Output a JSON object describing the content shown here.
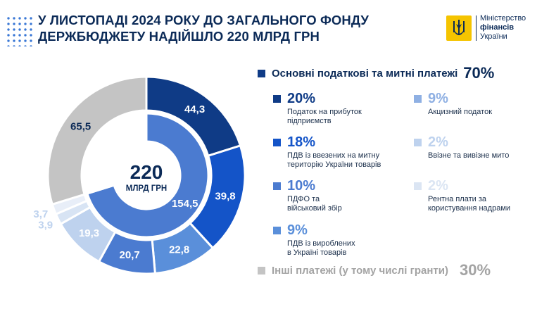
{
  "header": {
    "title": "У листопаді 2024 року до загального фонду держбюджету надійшло 220 млрд грн",
    "logo_line1": "Міністерство",
    "logo_line2": "фінансів",
    "logo_line3": "України"
  },
  "chart_data": {
    "type": "pie",
    "variant": "nested-donut",
    "center_value": "220",
    "center_unit": "млрд грн",
    "inner_ring": [
      {
        "value": 154.5,
        "label": "154,5",
        "color": "#4b7bd0"
      },
      {
        "value": 65.5,
        "label": "",
        "color": "#ffffff"
      }
    ],
    "outer_ring": [
      {
        "value": 44.3,
        "label": "44,3",
        "color": "#0f3b86"
      },
      {
        "value": 39.8,
        "label": "39,8",
        "color": "#1454c8"
      },
      {
        "value": 22.8,
        "label": "22,8",
        "color": "#5a8fda"
      },
      {
        "value": 20.7,
        "label": "20,7",
        "color": "#4b7bd0"
      },
      {
        "value": 19.3,
        "label": "19,3",
        "color": "#bed2ee"
      },
      {
        "value": 3.9,
        "label": "3,9",
        "color": "#d8e4f4"
      },
      {
        "value": 3.7,
        "label": "3,7",
        "color": "#e8eef8"
      },
      {
        "value": 65.5,
        "label": "65,5",
        "color": "#c4c4c4"
      }
    ]
  },
  "legend": {
    "main_label": "Основні податкові та митні платежі",
    "main_value": "70%",
    "main_color": "#0f3b86",
    "items_left": [
      {
        "pct": "20%",
        "desc1": "Податок на прибуток",
        "desc2": "підприємств",
        "color": "#0f3b86"
      },
      {
        "pct": "18%",
        "desc1": "ПДВ із ввезених на митну",
        "desc2": "територію України товарів",
        "color": "#1454c8"
      },
      {
        "pct": "10%",
        "desc1": "ПДФО та",
        "desc2": "військовий збір",
        "color": "#4b7bd0"
      },
      {
        "pct": "9%",
        "desc1": "ПДВ із вироблених",
        "desc2": "в Україні товарів",
        "color": "#5a8fda"
      }
    ],
    "items_right": [
      {
        "pct": "9%",
        "desc1": "Акцизний податок",
        "desc2": "",
        "color": "#8fb0e3"
      },
      {
        "pct": "2%",
        "desc1": "Ввізне та вивізне мито",
        "desc2": "",
        "color": "#bed2ee"
      },
      {
        "pct": "2%",
        "desc1": "Рентна плати за",
        "desc2": "користування надрами",
        "color": "#dbe5f3"
      }
    ],
    "other_label": "Інші платежі (у тому числі гранти)",
    "other_value": "30%",
    "other_color": "#c4c4c4"
  }
}
